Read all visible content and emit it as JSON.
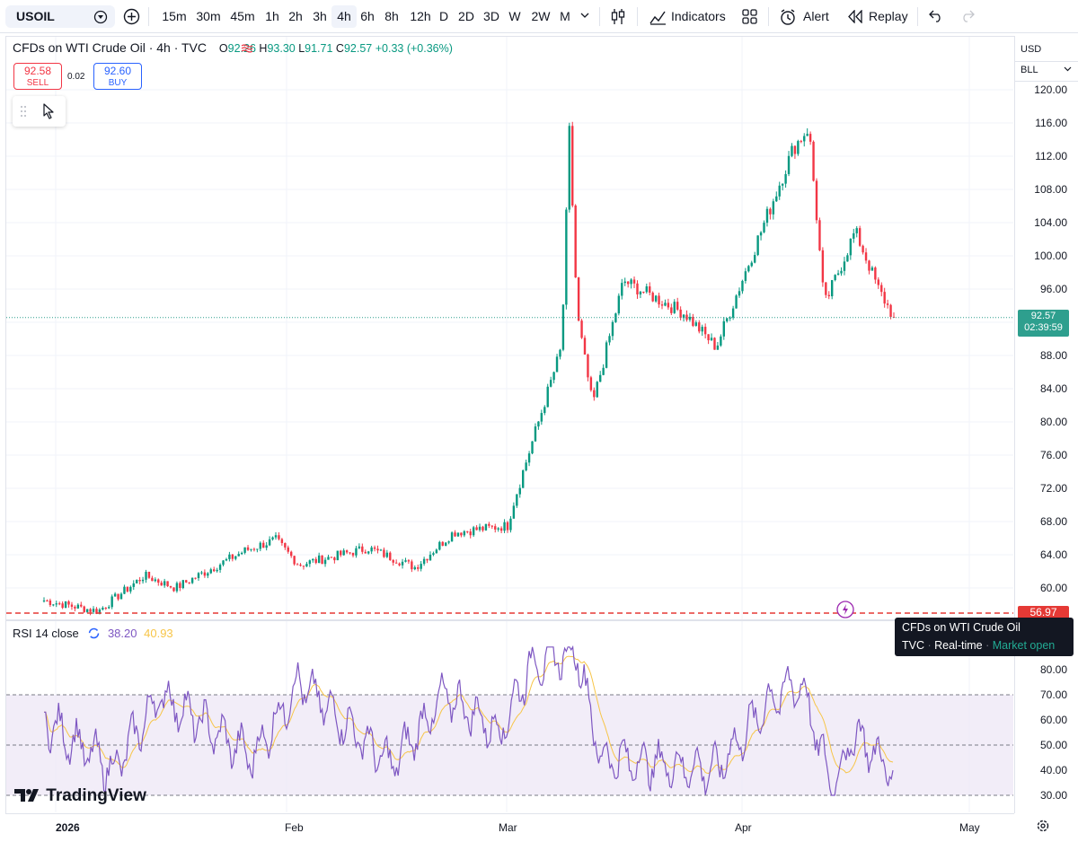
{
  "toolbar": {
    "symbol": "USOIL",
    "intervals": [
      "15m",
      "30m",
      "45m",
      "1h",
      "2h",
      "3h",
      "4h",
      "6h",
      "8h",
      "12h",
      "D",
      "2D",
      "3D",
      "W",
      "2W",
      "M"
    ],
    "active_interval": "4h",
    "indicators_label": "Indicators",
    "alert_label": "Alert",
    "replay_label": "Replay"
  },
  "legend": {
    "title": "CFDs on WTI Crude Oil · 4h · TVC",
    "o_key": "O",
    "o_val": "92.26",
    "h_key": "H",
    "h_val": "93.30",
    "l_key": "L",
    "l_val": "91.71",
    "c_key": "C",
    "c_val": "92.57",
    "change": "+0.33 (+0.36%)"
  },
  "trade": {
    "sell_price": "92.58",
    "sell_label": "SELL",
    "spread": "0.02",
    "buy_price": "92.60",
    "buy_label": "BUY"
  },
  "price_axis": {
    "currency": "USD",
    "unit": "BLL",
    "ticks": [
      "120.00",
      "116.00",
      "112.00",
      "108.00",
      "104.00",
      "100.00",
      "96.00",
      "92.00",
      "88.00",
      "84.00",
      "80.00",
      "76.00",
      "72.00",
      "68.00",
      "64.00",
      "60.00"
    ],
    "last_price": "92.57",
    "countdown": "02:39:59",
    "alert_price": "56.97"
  },
  "rsi": {
    "label": "RSI 14 close",
    "value": "38.20",
    "ma_value": "40.93",
    "ticks": [
      "80.00",
      "70.00",
      "60.00",
      "50.00",
      "40.00",
      "30.00"
    ]
  },
  "time_axis": [
    "2026",
    "Feb",
    "Mar",
    "Apr",
    "May"
  ],
  "tooltip": {
    "name": "CFDs on WTI Crude Oil",
    "source": "TVC",
    "feed": "Real-time",
    "status": "Market open"
  },
  "brand": "TradingView",
  "colors": {
    "up": "#089981",
    "down": "#f23645",
    "rsi": "#7e57c2",
    "rsi_ma": "#f7c548",
    "alert_line": "#e53935"
  },
  "chart_data": {
    "type": "candlestick",
    "series": "USOIL 4h",
    "price_range": [
      58,
      122
    ],
    "anchors": [
      {
        "t": "2026-01-01",
        "p": 58.5
      },
      {
        "t": "2026-01-08",
        "p": 57.2
      },
      {
        "t": "2026-01-14",
        "p": 61.5
      },
      {
        "t": "2026-01-18",
        "p": 60.0
      },
      {
        "t": "2026-01-27",
        "p": 64.5
      },
      {
        "t": "2026-01-31",
        "p": 65.8
      },
      {
        "t": "2026-02-03",
        "p": 62.8
      },
      {
        "t": "2026-02-12",
        "p": 64.8
      },
      {
        "t": "2026-02-18",
        "p": 62.5
      },
      {
        "t": "2026-02-23",
        "p": 66.7
      },
      {
        "t": "2026-03-02",
        "p": 67.5
      },
      {
        "t": "2026-03-03",
        "p": 71.0
      },
      {
        "t": "2026-03-09",
        "p": 89.0
      },
      {
        "t": "2026-03-10",
        "p": 115.0
      },
      {
        "t": "2026-03-11",
        "p": 93.0
      },
      {
        "t": "2026-03-13",
        "p": 82.0
      },
      {
        "t": "2026-03-17",
        "p": 97.0
      },
      {
        "t": "2026-03-25",
        "p": 93.0
      },
      {
        "t": "2026-03-29",
        "p": 89.0
      },
      {
        "t": "2026-04-03",
        "p": 101.0
      },
      {
        "t": "2026-04-08",
        "p": 113.0
      },
      {
        "t": "2026-04-10",
        "p": 115.5
      },
      {
        "t": "2026-04-12",
        "p": 94.0
      },
      {
        "t": "2026-04-16",
        "p": 103.0
      },
      {
        "t": "2026-04-19",
        "p": 96.0
      },
      {
        "t": "2026-04-21",
        "p": 92.57
      }
    ],
    "rsi_range": [
      25,
      90
    ],
    "rsi_anchors": [
      {
        "t": "2026-01-01",
        "v": 60
      },
      {
        "t": "2026-01-10",
        "v": 40
      },
      {
        "t": "2026-01-16",
        "v": 70
      },
      {
        "t": "2026-01-28",
        "v": 45
      },
      {
        "t": "2026-02-03",
        "v": 75
      },
      {
        "t": "2026-02-15",
        "v": 42
      },
      {
        "t": "2026-02-22",
        "v": 70
      },
      {
        "t": "2026-03-01",
        "v": 55
      },
      {
        "t": "2026-03-05",
        "v": 82
      },
      {
        "t": "2026-03-11",
        "v": 88
      },
      {
        "t": "2026-03-14",
        "v": 45
      },
      {
        "t": "2026-03-29",
        "v": 40
      },
      {
        "t": "2026-04-05",
        "v": 68
      },
      {
        "t": "2026-04-09",
        "v": 75
      },
      {
        "t": "2026-04-13",
        "v": 32
      },
      {
        "t": "2026-04-16",
        "v": 55
      },
      {
        "t": "2026-04-21",
        "v": 38.2
      }
    ]
  }
}
